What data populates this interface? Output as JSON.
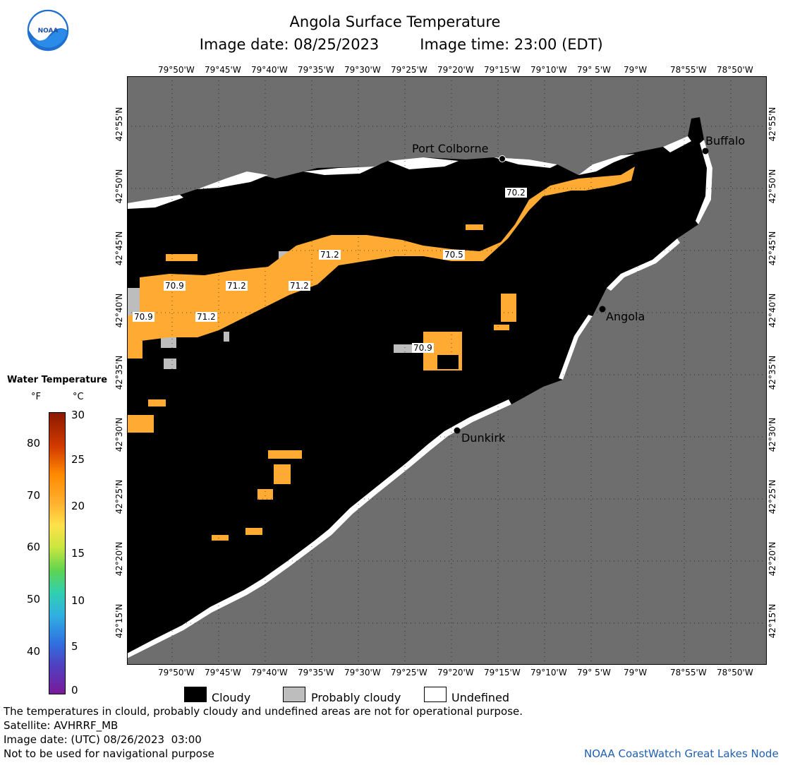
{
  "header": {
    "title": "Angola Surface Temperature",
    "image_date_label": "Image date: 08/25/2023",
    "image_time_label": "Image time: 23:00 (EDT)"
  },
  "logo": {
    "text": "NOAA"
  },
  "colors": {
    "land": "#6e6e6e",
    "cloudy": "#000000",
    "probably_cloudy": "#bdbdbd",
    "undefined": "#ffffff",
    "water_warm": "#ffaa33"
  },
  "axes": {
    "longitude_labels": [
      "79°50'W",
      "79°45'W",
      "79°40'W",
      "79°35'W",
      "79°30'W",
      "79°25'W",
      "79°20'W",
      "79°15'W",
      "79°10'W",
      "79° 5'W",
      "79°W",
      "78°55'W",
      "78°50'W"
    ],
    "latitude_labels": [
      "42°55'N",
      "42°50'N",
      "42°45'N",
      "42°40'N",
      "42°35'N",
      "42°30'N",
      "42°25'N",
      "42°20'N",
      "42°15'N"
    ]
  },
  "places": [
    {
      "name": "Port Colborne"
    },
    {
      "name": "Buffalo"
    },
    {
      "name": "Angola"
    },
    {
      "name": "Dunkirk"
    }
  ],
  "temp_labels": [
    "71.2",
    "70.9",
    "71.2",
    "71.2",
    "70.9",
    "71.2",
    "70.2",
    "70.5",
    "70.9"
  ],
  "colorbar": {
    "title": "Water Temperature",
    "unit_f": "°F",
    "unit_c": "°C",
    "f_ticks": [
      "80",
      "70",
      "60",
      "50",
      "40"
    ],
    "c_ticks": [
      "30",
      "25",
      "20",
      "15",
      "10",
      "5",
      "0"
    ]
  },
  "legend": {
    "cloudy": "Cloudy",
    "probably_cloudy": "Probably cloudy",
    "undefined": "Undefined"
  },
  "footer": {
    "disclaimer": "The temperatures in clould, probably cloudy and undefined areas are not for operational purpose.",
    "satellite": "Satellite: AVHRRF_MB",
    "utc_date": "Image date: (UTC) 08/26/2023  03:00",
    "nav_warning": "Not to be used for navigational purpose",
    "credit": "NOAA CoastWatch Great Lakes Node"
  }
}
